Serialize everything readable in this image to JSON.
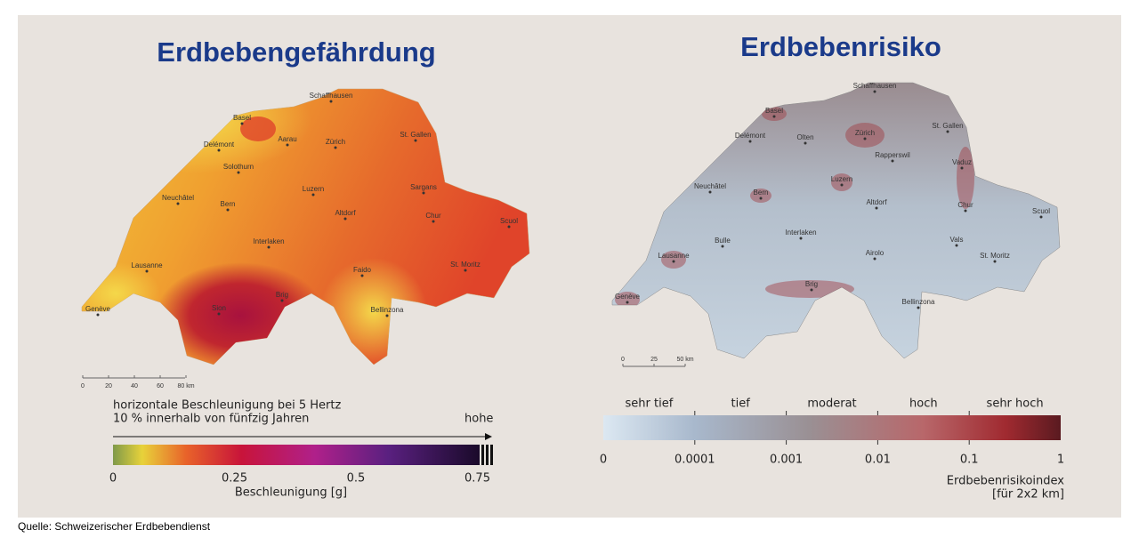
{
  "left_panel": {
    "title": "Erdbebengefährdung",
    "cities": [
      "Schaffhausen",
      "Basel",
      "Delémont",
      "Aarau",
      "Zürich",
      "St. Gallen",
      "Solothurn",
      "Neuchâtel",
      "Bern",
      "Luzern",
      "Sargans",
      "Altdorf",
      "Chur",
      "Scuol",
      "Interlaken",
      "Lausanne",
      "Faido",
      "St. Moritz",
      "Brig",
      "Sion",
      "Genève",
      "Bellinzona"
    ],
    "scale_bar": [
      "0",
      "20",
      "40",
      "60",
      "80 km"
    ],
    "legend": {
      "line1": "horizontale Beschleunigung bei 5 Hertz",
      "line2": "10 % innerhalb von fünfzig Jahren",
      "arrow_label": "hohe",
      "ticks": [
        "0",
        "0.25",
        "0.5",
        "0.75"
      ],
      "axis_label": "Beschleunigung [g]"
    }
  },
  "right_panel": {
    "title": "Erdbebenrisiko",
    "cities": [
      "Schaffhausen",
      "Basel",
      "Delémont",
      "Olten",
      "Zürich",
      "St. Gallen",
      "Rapperswil",
      "Vaduz",
      "Neuchâtel",
      "Bern",
      "Luzern",
      "Altdorf",
      "Chur",
      "Scuol",
      "Interlaken",
      "Bulle",
      "Vals",
      "Lausanne",
      "Airolo",
      "St. Moritz",
      "Brig",
      "Genève",
      "Bellinzona"
    ],
    "scale_bar": [
      "0",
      "25",
      "50 km"
    ],
    "legend": {
      "classes": [
        "sehr tief",
        "tief",
        "moderat",
        "hoch",
        "sehr hoch"
      ],
      "ticks": [
        "0",
        "0.0001",
        "0.001",
        "0.01",
        "0.1",
        "1"
      ],
      "axis_label": "Erdbebenrisikoindex",
      "unit": "[für 2x2 km]"
    }
  },
  "source": "Quelle: Schweizerischer Erdbebendienst"
}
